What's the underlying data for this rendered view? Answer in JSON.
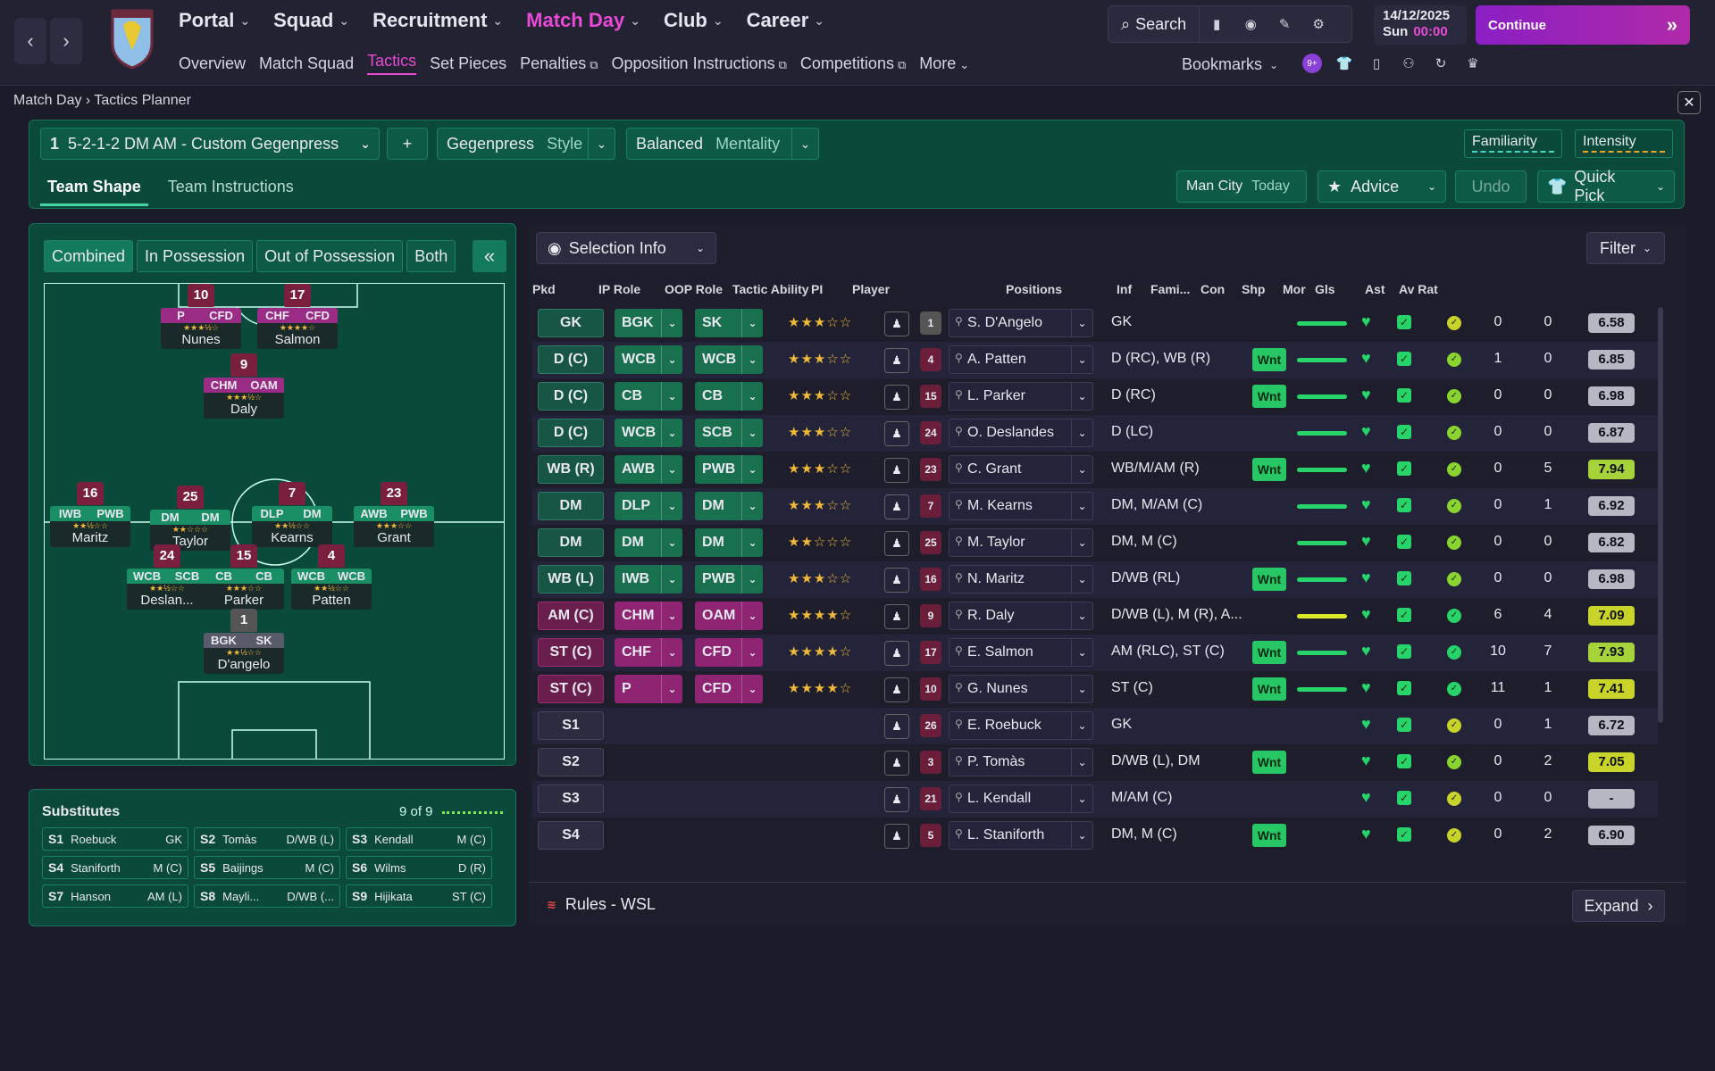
{
  "topbar": {
    "nav": [
      {
        "label": "Portal",
        "active": false
      },
      {
        "label": "Squad",
        "active": false
      },
      {
        "label": "Recruitment",
        "active": false
      },
      {
        "label": "Match Day",
        "active": true
      },
      {
        "label": "Club",
        "active": false
      },
      {
        "label": "Career",
        "active": false
      }
    ],
    "subnav": [
      "Overview",
      "Match Squad",
      "Tactics",
      "Set Pieces",
      "Penalties",
      "Opposition Instructions",
      "Competitions",
      "More"
    ],
    "search_label": "Search",
    "date": "14/12/2025",
    "day": "Sun",
    "time": "00:00",
    "continue_label": "Continue",
    "bookmarks_label": "Bookmarks",
    "notif_badge": "9+"
  },
  "breadcrumb": {
    "parent": "Match Day",
    "current": "Tactics Planner"
  },
  "tactic": {
    "slot": "1",
    "name": "5-2-1-2 DM AM - Custom Gegenpress",
    "style_value": "Gegenpress",
    "style_label": "Style",
    "mentality_value": "Balanced",
    "mentality_label": "Mentality",
    "familiarity_label": "Familiarity",
    "intensity_label": "Intensity",
    "tabs": [
      "Team Shape",
      "Team Instructions"
    ],
    "opponent": "Man City",
    "opponent_when": "Today",
    "advice_label": "Advice",
    "undo_label": "Undo",
    "quickpick_label": "Quick Pick"
  },
  "pitch": {
    "views": [
      "Combined",
      "In Possession",
      "Out of Possession",
      "Both"
    ],
    "players": [
      {
        "num": "10",
        "r1": "P",
        "r2": "CFD",
        "name": "Nunes",
        "type": "att",
        "stars": "★★★½☆"
      },
      {
        "num": "17",
        "r1": "CHF",
        "r2": "CFD",
        "name": "Salmon",
        "type": "att",
        "stars": "★★★★☆"
      },
      {
        "num": "9",
        "r1": "CHM",
        "r2": "OAM",
        "name": "Daly",
        "type": "att",
        "stars": "★★★½☆"
      },
      {
        "num": "16",
        "r1": "IWB",
        "r2": "PWB",
        "name": "Maritz",
        "type": "def",
        "stars": "★★½☆☆"
      },
      {
        "num": "25",
        "r1": "DM",
        "r2": "DM",
        "name": "Taylor",
        "type": "def",
        "stars": "★★☆☆☆"
      },
      {
        "num": "7",
        "r1": "DLP",
        "r2": "DM",
        "name": "Kearns",
        "type": "def",
        "stars": "★★½☆☆"
      },
      {
        "num": "23",
        "r1": "AWB",
        "r2": "PWB",
        "name": "Grant",
        "type": "def",
        "stars": "★★★☆☆"
      },
      {
        "num": "24",
        "r1": "WCB",
        "r2": "SCB",
        "name": "Deslan...",
        "type": "def",
        "stars": "★★½☆☆"
      },
      {
        "num": "15",
        "r1": "CB",
        "r2": "CB",
        "name": "Parker",
        "type": "def",
        "stars": "★★★☆☆"
      },
      {
        "num": "4",
        "r1": "WCB",
        "r2": "WCB",
        "name": "Patten",
        "type": "def",
        "stars": "★★½☆☆"
      },
      {
        "num": "1",
        "r1": "BGK",
        "r2": "SK",
        "name": "D'angelo",
        "type": "gk",
        "stars": "★★½☆☆"
      }
    ]
  },
  "subs": {
    "title": "Substitutes",
    "count": "9 of 9",
    "list": [
      {
        "slot": "S1",
        "name": "Roebuck",
        "pos": "GK"
      },
      {
        "slot": "S2",
        "name": "Tomàs",
        "pos": "D/WB (L)"
      },
      {
        "slot": "S3",
        "name": "Kendall",
        "pos": "M (C)"
      },
      {
        "slot": "S4",
        "name": "Staniforth",
        "pos": "M (C)"
      },
      {
        "slot": "S5",
        "name": "Baijings",
        "pos": "M (C)"
      },
      {
        "slot": "S6",
        "name": "Wilms",
        "pos": "D (R)"
      },
      {
        "slot": "S7",
        "name": "Hanson",
        "pos": "AM (L)"
      },
      {
        "slot": "S8",
        "name": "Mayli...",
        "pos": "D/WB (..."
      },
      {
        "slot": "S9",
        "name": "Hijikata",
        "pos": "ST (C)"
      }
    ]
  },
  "selection": {
    "info_label": "Selection Info",
    "filter_label": "Filter",
    "columns": [
      "Pkd",
      "IP Role",
      "OOP Role",
      "Tactic Ability",
      "PI",
      "Player",
      "Positions",
      "Inf",
      "Fami...",
      "Con",
      "Shp",
      "Mor",
      "Gls",
      "Ast",
      "Av Rat"
    ],
    "rows": [
      {
        "pkd": "GK",
        "ip": "BGK",
        "oop": "SK",
        "type": "gk",
        "stars": "★★½",
        "num": "1",
        "player": "S. D'Angelo",
        "pos": "GK",
        "inf": "",
        "fam": "#27d46a",
        "mor": "#c8d42a",
        "gls": "0",
        "ast": "0",
        "rat": "6.58",
        "ratc": "#b7b7c4"
      },
      {
        "pkd": "D (C)",
        "ip": "WCB",
        "oop": "WCB",
        "type": "def",
        "stars": "★★½",
        "num": "4",
        "player": "A. Patten",
        "pos": "D (RC), WB (R)",
        "inf": "Wnt",
        "fam": "#27d46a",
        "mor": "#8ad430",
        "gls": "1",
        "ast": "0",
        "rat": "6.85",
        "ratc": "#b7b7c4"
      },
      {
        "pkd": "D (C)",
        "ip": "CB",
        "oop": "CB",
        "type": "def",
        "stars": "★★★",
        "num": "15",
        "player": "L. Parker",
        "pos": "D (RC)",
        "inf": "Wnt",
        "fam": "#27d46a",
        "mor": "#8ad430",
        "gls": "0",
        "ast": "0",
        "rat": "6.98",
        "ratc": "#b7b7c4"
      },
      {
        "pkd": "D (C)",
        "ip": "WCB",
        "oop": "SCB",
        "type": "def",
        "stars": "★★½",
        "num": "24",
        "player": "O. Deslandes",
        "pos": "D (LC)",
        "inf": "",
        "fam": "#27d46a",
        "mor": "#8ad430",
        "gls": "0",
        "ast": "0",
        "rat": "6.87",
        "ratc": "#b7b7c4"
      },
      {
        "pkd": "WB (R)",
        "ip": "AWB",
        "oop": "PWB",
        "type": "def",
        "stars": "★★★",
        "num": "23",
        "player": "C. Grant",
        "pos": "WB/M/AM (R)",
        "inf": "Wnt",
        "fam": "#27d46a",
        "mor": "#8ad430",
        "gls": "0",
        "ast": "5",
        "rat": "7.94",
        "ratc": "#a6d33a"
      },
      {
        "pkd": "DM",
        "ip": "DLP",
        "oop": "DM",
        "type": "def",
        "stars": "★★½",
        "num": "7",
        "player": "M. Kearns",
        "pos": "DM, M/AM (C)",
        "inf": "",
        "fam": "#27d46a",
        "mor": "#8ad430",
        "gls": "0",
        "ast": "1",
        "rat": "6.92",
        "ratc": "#b7b7c4"
      },
      {
        "pkd": "DM",
        "ip": "DM",
        "oop": "DM",
        "type": "def",
        "stars": "★★",
        "num": "25",
        "player": "M. Taylor",
        "pos": "DM, M (C)",
        "inf": "",
        "fam": "#27d46a",
        "mor": "#8ad430",
        "gls": "0",
        "ast": "0",
        "rat": "6.82",
        "ratc": "#b7b7c4"
      },
      {
        "pkd": "WB (L)",
        "ip": "IWB",
        "oop": "PWB",
        "type": "def",
        "stars": "★★½",
        "num": "16",
        "player": "N. Maritz",
        "pos": "D/WB (RL)",
        "inf": "Wnt",
        "fam": "#27d46a",
        "mor": "#8ad430",
        "gls": "0",
        "ast": "0",
        "rat": "6.98",
        "ratc": "#b7b7c4"
      },
      {
        "pkd": "AM (C)",
        "ip": "CHM",
        "oop": "OAM",
        "type": "att",
        "stars": "★★★½",
        "num": "9",
        "player": "R. Daly",
        "pos": "D/WB (L), M (R), A...",
        "inf": "",
        "fam": "#d8e82a",
        "mor": "#27d46a",
        "gls": "6",
        "ast": "4",
        "rat": "7.09",
        "ratc": "#c8d42a"
      },
      {
        "pkd": "ST (C)",
        "ip": "CHF",
        "oop": "CFD",
        "type": "att",
        "stars": "★★★★",
        "num": "17",
        "player": "E. Salmon",
        "pos": "AM (RLC), ST (C)",
        "inf": "Wnt",
        "fam": "#27d46a",
        "mor": "#27d46a",
        "gls": "10",
        "ast": "7",
        "rat": "7.93",
        "ratc": "#a6d33a"
      },
      {
        "pkd": "ST (C)",
        "ip": "P",
        "oop": "CFD",
        "type": "att",
        "stars": "★★★½",
        "num": "10",
        "player": "G. Nunes",
        "pos": "ST (C)",
        "inf": "Wnt",
        "fam": "#27d46a",
        "mor": "#27d46a",
        "gls": "11",
        "ast": "1",
        "rat": "7.41",
        "ratc": "#c8d42a"
      },
      {
        "pkd": "S1",
        "ip": "",
        "oop": "",
        "type": "sub",
        "stars": "",
        "num": "26",
        "player": "E. Roebuck",
        "pos": "GK",
        "inf": "",
        "fam": "",
        "mor": "#c8d42a",
        "gls": "0",
        "ast": "1",
        "rat": "6.72",
        "ratc": "#b7b7c4"
      },
      {
        "pkd": "S2",
        "ip": "",
        "oop": "",
        "type": "sub",
        "stars": "",
        "num": "3",
        "player": "P. Tomàs",
        "pos": "D/WB (L), DM",
        "inf": "Wnt",
        "fam": "",
        "mor": "#8ad430",
        "gls": "0",
        "ast": "2",
        "rat": "7.05",
        "ratc": "#c8d42a"
      },
      {
        "pkd": "S3",
        "ip": "",
        "oop": "",
        "type": "sub",
        "stars": "",
        "num": "21",
        "player": "L. Kendall",
        "pos": "M/AM (C)",
        "inf": "",
        "fam": "",
        "mor": "#c8d42a",
        "gls": "0",
        "ast": "0",
        "rat": "-",
        "ratc": "#b7b7c4"
      },
      {
        "pkd": "S4",
        "ip": "",
        "oop": "",
        "type": "sub",
        "stars": "",
        "num": "5",
        "player": "L. Staniforth",
        "pos": "DM, M (C)",
        "inf": "Wnt",
        "fam": "",
        "mor": "#c8d42a",
        "gls": "0",
        "ast": "2",
        "rat": "6.90",
        "ratc": "#b7b7c4"
      }
    ],
    "rules_label": "Rules - WSL",
    "expand_label": "Expand"
  }
}
